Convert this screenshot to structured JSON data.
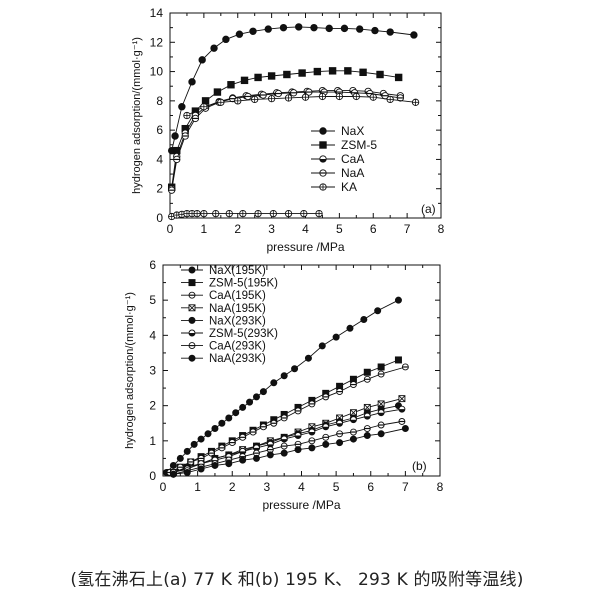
{
  "caption": "(氢在沸石上(a) 77 K 和(b) 195 K、 293 K 的吸附等温线)",
  "chart_data": [
    {
      "type": "line",
      "panel_label": "(a)",
      "xlabel": "pressure /MPa",
      "ylabel": "hydrogen adsorption/(mmol·g⁻¹)",
      "xlim": [
        0,
        8
      ],
      "ylim": [
        0,
        14
      ],
      "xticks": [
        0,
        1,
        2,
        3,
        4,
        5,
        6,
        7,
        8
      ],
      "yticks": [
        0,
        2,
        4,
        6,
        8,
        10,
        12,
        14
      ],
      "legend_position": "right-center",
      "series": [
        {
          "name": "NaX",
          "marker": "filled-circle",
          "x": [
            0.05,
            0.15,
            0.35,
            0.65,
            0.95,
            1.3,
            1.65,
            2.05,
            2.45,
            2.9,
            3.35,
            3.8,
            4.25,
            4.7,
            5.15,
            5.6,
            6.05,
            6.5,
            7.2
          ],
          "y": [
            4.6,
            5.6,
            7.6,
            9.3,
            10.8,
            11.6,
            12.2,
            12.55,
            12.75,
            12.9,
            13.0,
            13.05,
            13.0,
            12.95,
            12.95,
            12.9,
            12.8,
            12.7,
            12.5
          ]
        },
        {
          "name": "ZSM-5",
          "marker": "filled-square",
          "x": [
            0.05,
            0.2,
            0.45,
            0.75,
            1.05,
            1.4,
            1.8,
            2.2,
            2.6,
            3.0,
            3.45,
            3.9,
            4.35,
            4.8,
            5.25,
            5.7,
            6.2,
            6.75
          ],
          "y": [
            2.1,
            4.6,
            6.1,
            7.3,
            8.0,
            8.6,
            9.1,
            9.4,
            9.6,
            9.7,
            9.8,
            9.9,
            10.0,
            10.05,
            10.05,
            9.95,
            9.8,
            9.6
          ]
        },
        {
          "name": "CaA",
          "marker": "half-circle",
          "x": [
            0.05,
            0.2,
            0.45,
            0.75,
            1.05,
            1.45,
            1.85,
            2.25,
            2.7,
            3.15,
            3.6,
            4.05,
            4.5,
            4.95,
            5.4,
            5.85,
            6.3,
            6.8
          ],
          "y": [
            2.0,
            4.2,
            5.8,
            7.0,
            7.6,
            7.95,
            8.2,
            8.35,
            8.45,
            8.55,
            8.6,
            8.65,
            8.7,
            8.7,
            8.7,
            8.65,
            8.5,
            8.35
          ]
        },
        {
          "name": "NaA",
          "marker": "circle-line",
          "x": [
            0.05,
            0.2,
            0.45,
            0.75,
            1.05,
            1.45,
            1.85,
            2.3,
            2.75,
            3.2,
            3.65,
            4.1,
            4.55,
            5.0,
            5.45,
            5.9,
            6.35,
            6.8
          ],
          "y": [
            1.9,
            4.0,
            5.6,
            6.8,
            7.5,
            7.9,
            8.15,
            8.3,
            8.4,
            8.5,
            8.55,
            8.6,
            8.6,
            8.6,
            8.55,
            8.5,
            8.35,
            8.2
          ]
        },
        {
          "name": "KA",
          "marker": "open-circle-cross",
          "x": [
            0.05,
            0.2,
            0.35,
            0.5,
            0.65,
            0.8,
            1.0,
            1.35,
            1.75,
            2.15,
            2.6,
            3.05,
            3.5,
            3.95,
            4.4
          ],
          "y": [
            0.1,
            0.2,
            0.25,
            0.3,
            0.3,
            0.3,
            0.3,
            0.3,
            0.3,
            0.3,
            0.3,
            0.3,
            0.3,
            0.3,
            0.3
          ]
        },
        {
          "name": "",
          "marker": "open-circle-cross",
          "x": [
            0.5,
            1.0,
            1.5,
            2.0,
            2.5,
            3.0,
            3.5,
            4.0,
            4.5,
            5.0,
            5.5,
            6.0,
            6.5,
            7.25
          ],
          "y": [
            7.0,
            7.6,
            7.9,
            8.0,
            8.1,
            8.15,
            8.2,
            8.25,
            8.3,
            8.3,
            8.3,
            8.25,
            8.1,
            7.9
          ]
        }
      ]
    },
    {
      "type": "line",
      "panel_label": "(b)",
      "xlabel": "pressure /MPa",
      "ylabel": "hydrogen adsorption/(mmol·g⁻¹)",
      "xlim": [
        0,
        8
      ],
      "ylim": [
        0,
        6
      ],
      "xticks": [
        0,
        1,
        2,
        3,
        4,
        5,
        6,
        7,
        8
      ],
      "yticks": [
        0,
        1,
        2,
        3,
        4,
        5,
        6
      ],
      "legend_position": "top-left",
      "series": [
        {
          "name": "NaX(195K)",
          "marker": "filled-circle",
          "x": [
            0.1,
            0.3,
            0.5,
            0.7,
            0.9,
            1.1,
            1.3,
            1.5,
            1.7,
            1.9,
            2.1,
            2.3,
            2.5,
            2.7,
            2.9,
            3.2,
            3.5,
            3.8,
            4.2,
            4.6,
            5.0,
            5.4,
            5.8,
            6.2,
            6.8
          ],
          "y": [
            0.1,
            0.3,
            0.5,
            0.7,
            0.9,
            1.05,
            1.2,
            1.35,
            1.5,
            1.65,
            1.8,
            1.95,
            2.1,
            2.25,
            2.4,
            2.65,
            2.85,
            3.05,
            3.35,
            3.7,
            3.95,
            4.2,
            4.45,
            4.7,
            5.0
          ]
        },
        {
          "name": "ZSM-5(195K)",
          "marker": "filled-square",
          "x": [
            0.2,
            0.5,
            0.8,
            1.1,
            1.4,
            1.7,
            2.0,
            2.3,
            2.6,
            2.9,
            3.2,
            3.5,
            3.9,
            4.3,
            4.7,
            5.1,
            5.5,
            5.9,
            6.3,
            6.8
          ],
          "y": [
            0.1,
            0.25,
            0.4,
            0.55,
            0.7,
            0.85,
            1.0,
            1.15,
            1.3,
            1.45,
            1.6,
            1.75,
            1.95,
            2.15,
            2.35,
            2.55,
            2.75,
            2.95,
            3.1,
            3.3
          ]
        },
        {
          "name": "CaA(195K)",
          "marker": "circle-line",
          "x": [
            0.2,
            0.5,
            0.8,
            1.1,
            1.4,
            1.7,
            2.0,
            2.3,
            2.6,
            2.9,
            3.2,
            3.5,
            3.9,
            4.3,
            4.7,
            5.1,
            5.5,
            5.9,
            6.3,
            7.0
          ],
          "y": [
            0.1,
            0.25,
            0.4,
            0.5,
            0.65,
            0.8,
            0.95,
            1.1,
            1.25,
            1.4,
            1.5,
            1.65,
            1.85,
            2.05,
            2.25,
            2.4,
            2.6,
            2.75,
            2.9,
            3.1
          ]
        },
        {
          "name": "NaA(195K)",
          "marker": "square-x",
          "x": [
            0.3,
            0.7,
            1.1,
            1.5,
            1.9,
            2.3,
            2.7,
            3.1,
            3.5,
            3.9,
            4.3,
            4.7,
            5.1,
            5.5,
            5.9,
            6.3,
            6.9
          ],
          "y": [
            0.1,
            0.25,
            0.35,
            0.5,
            0.6,
            0.75,
            0.85,
            1.0,
            1.1,
            1.25,
            1.4,
            1.5,
            1.65,
            1.8,
            1.95,
            2.05,
            2.2
          ]
        },
        {
          "name": "NaX(293K)",
          "marker": "filled-circle",
          "x": [
            0.3,
            0.7,
            1.1,
            1.5,
            1.9,
            2.3,
            2.7,
            3.1,
            3.5,
            3.9,
            4.3,
            4.7,
            5.1,
            5.5,
            5.9,
            6.3,
            6.8
          ],
          "y": [
            0.1,
            0.25,
            0.35,
            0.5,
            0.6,
            0.7,
            0.85,
            0.95,
            1.1,
            1.2,
            1.3,
            1.45,
            1.55,
            1.65,
            1.8,
            1.9,
            2.0
          ]
        },
        {
          "name": "ZSM-5(293K)",
          "marker": "half-circle",
          "x": [
            0.3,
            0.7,
            1.1,
            1.5,
            1.9,
            2.3,
            2.7,
            3.1,
            3.5,
            3.9,
            4.3,
            4.7,
            5.1,
            5.5,
            5.9,
            6.3,
            6.9
          ],
          "y": [
            0.1,
            0.2,
            0.35,
            0.45,
            0.55,
            0.7,
            0.8,
            0.9,
            1.05,
            1.15,
            1.25,
            1.4,
            1.5,
            1.6,
            1.7,
            1.8,
            1.9
          ]
        },
        {
          "name": "CaA(293K)",
          "marker": "circle-line",
          "x": [
            0.3,
            0.7,
            1.1,
            1.5,
            1.9,
            2.3,
            2.7,
            3.1,
            3.5,
            3.9,
            4.3,
            4.7,
            5.1,
            5.5,
            5.9,
            6.3,
            6.9
          ],
          "y": [
            0.05,
            0.15,
            0.25,
            0.35,
            0.45,
            0.55,
            0.65,
            0.75,
            0.85,
            0.9,
            1.0,
            1.1,
            1.2,
            1.25,
            1.35,
            1.45,
            1.55
          ]
        },
        {
          "name": "NaA(293K)",
          "marker": "filled-circle",
          "x": [
            0.3,
            0.7,
            1.1,
            1.5,
            1.9,
            2.3,
            2.7,
            3.1,
            3.5,
            3.9,
            4.3,
            4.7,
            5.1,
            5.5,
            5.9,
            6.3,
            7.0
          ],
          "y": [
            0.05,
            0.1,
            0.2,
            0.3,
            0.35,
            0.45,
            0.5,
            0.6,
            0.65,
            0.75,
            0.8,
            0.9,
            0.95,
            1.05,
            1.15,
            1.2,
            1.35
          ]
        }
      ]
    }
  ]
}
